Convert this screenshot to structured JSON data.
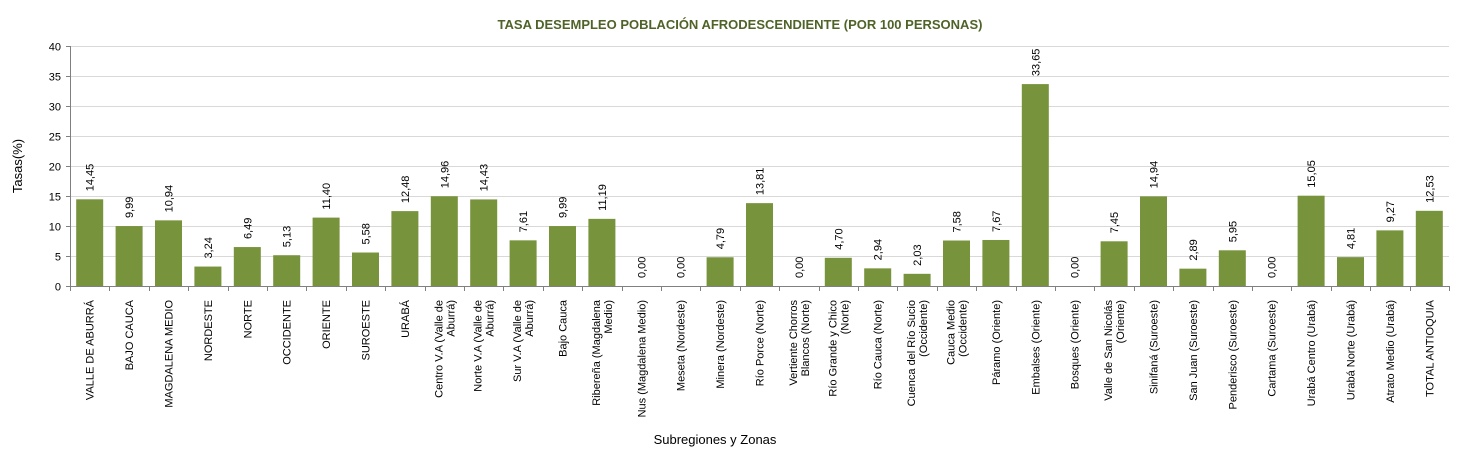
{
  "chart_data": {
    "type": "bar",
    "title": "TASA DESEMPLEO POBLACIÓN AFRODESCENDIENTE (POR 100 PERSONAS)",
    "xlabel": "Subregiones y Zonas",
    "ylabel": "Tasas(%)",
    "ylim": [
      0,
      40
    ],
    "yticks": [
      "0",
      "5",
      "10",
      "15",
      "20",
      "25",
      "30",
      "35",
      "40"
    ],
    "ytick_values": [
      0,
      5,
      10,
      15,
      20,
      25,
      30,
      35,
      40
    ],
    "grid": true,
    "legend": "none",
    "bar_color": "#77933c",
    "title_color": "#4f6228",
    "categories": [
      [
        "VALLE DE ABURRÁ"
      ],
      [
        "BAJO CAUCA"
      ],
      [
        "MAGDALENA MEDIO"
      ],
      [
        "NORDESTE"
      ],
      [
        "NORTE"
      ],
      [
        "OCCIDENTE"
      ],
      [
        "ORIENTE"
      ],
      [
        "SUROESTE"
      ],
      [
        "URABÁ"
      ],
      [
        "Centro V.A (Valle de",
        "Aburrá)"
      ],
      [
        "Norte V.A (Valle de",
        "Aburrá)"
      ],
      [
        "Sur V.A (Valle de",
        "Aburrá)"
      ],
      [
        "Bajo Cauca"
      ],
      [
        "Ribereña (Magdalena",
        "Medio)"
      ],
      [
        "Nus (Magdalena Medio)"
      ],
      [
        "Meseta (Nordeste)"
      ],
      [
        "Minera (Nordeste)"
      ],
      [
        "Río Porce (Norte)"
      ],
      [
        "Vertiente Chorros",
        "Blancos (Norte)"
      ],
      [
        "Río Grande y Chico",
        "(Norte)"
      ],
      [
        "Río Cauca (Norte)"
      ],
      [
        "Cuenca del Río Sucio",
        "(Occidente)"
      ],
      [
        "Cauca Medio",
        "(Occidente)"
      ],
      [
        "Páramo (Oriente)"
      ],
      [
        "Embalses (Oriente)"
      ],
      [
        "Bosques (Oriente)"
      ],
      [
        "Valle de San Nicolás",
        "(Oriente)"
      ],
      [
        "Sinifaná (Suroeste)"
      ],
      [
        "San Juan (Suroeste)"
      ],
      [
        "Penderisco (Suroeste)"
      ],
      [
        "Cartama (Suroeste)"
      ],
      [
        "Urabá Centro (Urabá)"
      ],
      [
        "Urabá Norte (Urabá)"
      ],
      [
        "Atrato Medio (Urabá)"
      ],
      [
        "TOTAL ANTIOQUIA"
      ]
    ],
    "values": [
      14.45,
      9.99,
      10.94,
      3.24,
      6.49,
      5.13,
      11.4,
      5.58,
      12.48,
      14.96,
      14.43,
      7.61,
      9.99,
      11.19,
      0.0,
      0.0,
      4.79,
      13.81,
      0.0,
      4.7,
      2.94,
      2.03,
      7.58,
      7.67,
      33.65,
      0.0,
      7.45,
      14.94,
      2.89,
      5.95,
      0.0,
      15.05,
      4.81,
      9.27,
      12.53
    ],
    "data_labels": [
      "14,45",
      "9,99",
      "10,94",
      "3,24",
      "6,49",
      "5,13",
      "11,40",
      "5,58",
      "12,48",
      "14,96",
      "14,43",
      "7,61",
      "9,99",
      "11,19",
      "0,00",
      "0,00",
      "4,79",
      "13,81",
      "0,00",
      "4,70",
      "2,94",
      "2,03",
      "7,58",
      "7,67",
      "33,65",
      "0,00",
      "7,45",
      "14,94",
      "2,89",
      "5,95",
      "0,00",
      "15,05",
      "4,81",
      "9,27",
      "12,53"
    ]
  }
}
